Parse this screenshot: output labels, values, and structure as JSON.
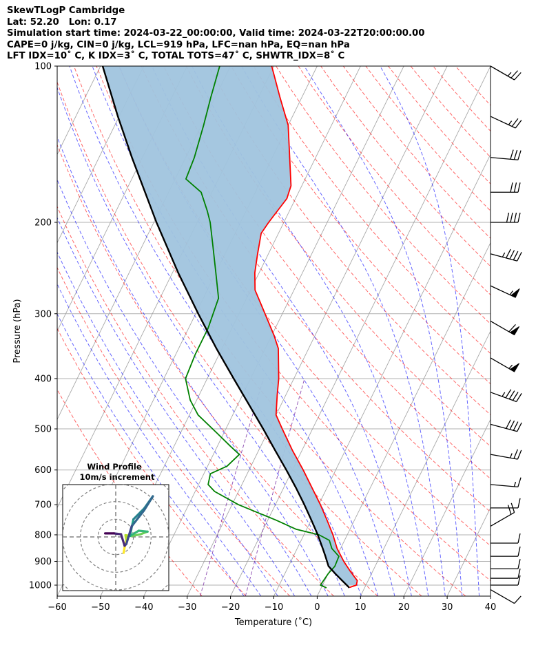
{
  "header": {
    "line1": "SkewTLogP Cambridge",
    "line2": "Lat: 52.20   Lon: 0.17",
    "line3": "Simulation start time: 2024-03-22_00:00:00, Valid time: 2024-03-22T20:00:00.00",
    "line4": "CAPE=0 j/kg, CIN=0 j/kg, LCL=919 hPa, LFC=nan hPa, EQ=nan hPa",
    "line5": "LFT IDX=10˚ C, K IDX=3˚ C, TOTAL TOTS=47˚ C, SHWTR_IDX=8˚ C"
  },
  "chart_data": {
    "type": "skew-t log-p",
    "xlabel": "Temperature (˚C)",
    "ylabel": "Pressure (hPa)",
    "xlim": [
      -60,
      40
    ],
    "ylim": [
      1050,
      100
    ],
    "xticks": [
      -60,
      -50,
      -40,
      -30,
      -20,
      -10,
      0,
      10,
      20,
      30,
      40
    ],
    "yticks": [
      100,
      200,
      300,
      400,
      500,
      600,
      700,
      800,
      900,
      1000
    ],
    "colors": {
      "temperature": "#ff0000",
      "dewpoint": "#008000",
      "parcel": "#000000",
      "cape_fill": "#a0c4de",
      "dry_adiabat": "#ff0000",
      "moist_adiabat": "#0000ff",
      "mixing_ratio": "#7b2fa5",
      "isotherm": "#999999",
      "grid": "#b0b0b0"
    },
    "temperature": [
      {
        "p": 1010,
        "t": 6.5
      },
      {
        "p": 1000,
        "t": 7.8
      },
      {
        "p": 980,
        "t": 7.5
      },
      {
        "p": 940,
        "t": 4.8
      },
      {
        "p": 900,
        "t": 2.2
      },
      {
        "p": 850,
        "t": -0.8
      },
      {
        "p": 800,
        "t": -3.3
      },
      {
        "p": 750,
        "t": -6.3
      },
      {
        "p": 700,
        "t": -9.6
      },
      {
        "p": 650,
        "t": -13.4
      },
      {
        "p": 600,
        "t": -17.5
      },
      {
        "p": 550,
        "t": -22.2
      },
      {
        "p": 500,
        "t": -27.0
      },
      {
        "p": 470,
        "t": -30.0
      },
      {
        "p": 430,
        "t": -32.0
      },
      {
        "p": 400,
        "t": -33.5
      },
      {
        "p": 350,
        "t": -37.0
      },
      {
        "p": 330,
        "t": -39.5
      },
      {
        "p": 300,
        "t": -44.0
      },
      {
        "p": 270,
        "t": -49.0
      },
      {
        "p": 250,
        "t": -51.0
      },
      {
        "p": 230,
        "t": -52.5
      },
      {
        "p": 210,
        "t": -54.0
      },
      {
        "p": 200,
        "t": -53.5
      },
      {
        "p": 180,
        "t": -52.0
      },
      {
        "p": 170,
        "t": -52.5
      },
      {
        "p": 150,
        "t": -56.0
      },
      {
        "p": 130,
        "t": -60.0
      },
      {
        "p": 115,
        "t": -65.0
      },
      {
        "p": 100,
        "t": -70.5
      }
    ],
    "dewpoint": [
      {
        "p": 1012,
        "t": 1.2
      },
      {
        "p": 1000,
        "t": -0.5
      },
      {
        "p": 980,
        "t": -0.3
      },
      {
        "p": 950,
        "t": 0.0
      },
      {
        "p": 920,
        "t": 0.7
      },
      {
        "p": 880,
        "t": 0.5
      },
      {
        "p": 850,
        "t": -2.0
      },
      {
        "p": 820,
        "t": -3.5
      },
      {
        "p": 800,
        "t": -6.5
      },
      {
        "p": 780,
        "t": -12.5
      },
      {
        "p": 750,
        "t": -18.0
      },
      {
        "p": 700,
        "t": -28.5
      },
      {
        "p": 660,
        "t": -35.5
      },
      {
        "p": 640,
        "t": -37.8
      },
      {
        "p": 610,
        "t": -38.5
      },
      {
        "p": 590,
        "t": -35.5
      },
      {
        "p": 560,
        "t": -34.0
      },
      {
        "p": 540,
        "t": -37.0
      },
      {
        "p": 510,
        "t": -41.5
      },
      {
        "p": 470,
        "t": -48.0
      },
      {
        "p": 440,
        "t": -51.5
      },
      {
        "p": 400,
        "t": -55.0
      },
      {
        "p": 360,
        "t": -55.5
      },
      {
        "p": 320,
        "t": -55.5
      },
      {
        "p": 280,
        "t": -56.5
      },
      {
        "p": 250,
        "t": -60.0
      },
      {
        "p": 220,
        "t": -64.0
      },
      {
        "p": 200,
        "t": -67.0
      },
      {
        "p": 190,
        "t": -69.0
      },
      {
        "p": 175,
        "t": -72.5
      },
      {
        "p": 165,
        "t": -77.5
      },
      {
        "p": 150,
        "t": -78.0
      },
      {
        "p": 130,
        "t": -79.5
      },
      {
        "p": 115,
        "t": -81.0
      },
      {
        "p": 100,
        "t": -82.5
      }
    ],
    "parcel": [
      {
        "p": 1012,
        "t": 6.5
      },
      {
        "p": 980,
        "t": 4.0
      },
      {
        "p": 950,
        "t": 1.6
      },
      {
        "p": 919,
        "t": -0.8
      },
      {
        "p": 880,
        "t": -2.6
      },
      {
        "p": 850,
        "t": -4.1
      },
      {
        "p": 800,
        "t": -6.8
      },
      {
        "p": 750,
        "t": -9.9
      },
      {
        "p": 700,
        "t": -13.3
      },
      {
        "p": 650,
        "t": -17.1
      },
      {
        "p": 600,
        "t": -21.4
      },
      {
        "p": 550,
        "t": -26.2
      },
      {
        "p": 500,
        "t": -31.4
      },
      {
        "p": 450,
        "t": -37.3
      },
      {
        "p": 400,
        "t": -43.9
      },
      {
        "p": 350,
        "t": -51.3
      },
      {
        "p": 300,
        "t": -59.4
      },
      {
        "p": 250,
        "t": -68.7
      },
      {
        "p": 200,
        "t": -79.4
      },
      {
        "p": 150,
        "t": -92.4
      },
      {
        "p": 125,
        "t": -100.3
      },
      {
        "p": 100,
        "t": -109.5
      }
    ],
    "wind_barbs": [
      {
        "p": 100,
        "speed_kt": 25,
        "dir": 300
      },
      {
        "p": 125,
        "speed_kt": 25,
        "dir": 295
      },
      {
        "p": 150,
        "speed_kt": 30,
        "dir": 275
      },
      {
        "p": 175,
        "speed_kt": 30,
        "dir": 270
      },
      {
        "p": 200,
        "speed_kt": 40,
        "dir": 270
      },
      {
        "p": 230,
        "speed_kt": 45,
        "dir": 285
      },
      {
        "p": 265,
        "speed_kt": 55,
        "dir": 295
      },
      {
        "p": 310,
        "speed_kt": 60,
        "dir": 300
      },
      {
        "p": 365,
        "speed_kt": 55,
        "dir": 300
      },
      {
        "p": 425,
        "speed_kt": 45,
        "dir": 290
      },
      {
        "p": 490,
        "speed_kt": 40,
        "dir": 285
      },
      {
        "p": 560,
        "speed_kt": 25,
        "dir": 280
      },
      {
        "p": 640,
        "speed_kt": 15,
        "dir": 275
      },
      {
        "p": 710,
        "speed_kt": 10,
        "dir": 270
      },
      {
        "p": 770,
        "speed_kt": 20,
        "dir": 240
      },
      {
        "p": 830,
        "speed_kt": 10,
        "dir": 270
      },
      {
        "p": 880,
        "speed_kt": 10,
        "dir": 270
      },
      {
        "p": 930,
        "speed_kt": 10,
        "dir": 270
      },
      {
        "p": 970,
        "speed_kt": 10,
        "dir": 270
      },
      {
        "p": 1000,
        "speed_kt": 10,
        "dir": 270
      },
      {
        "p": 1020,
        "speed_kt": 10,
        "dir": 300
      }
    ],
    "hodograph": {
      "title": "Wind Profile",
      "subtitle": "10m/s increment",
      "ring_spacing_ms": 10,
      "extent_ms": 30,
      "points": [
        {
          "u": 4.5,
          "v": -9.0
        },
        {
          "u": 5.0,
          "v": -6.0
        },
        {
          "u": 6.0,
          "v": -2.0
        },
        {
          "u": 5.5,
          "v": 1.0
        },
        {
          "u": 9.0,
          "v": 0.5
        },
        {
          "u": 14.0,
          "v": 1.5
        },
        {
          "u": 18.0,
          "v": 3.0
        },
        {
          "u": 13.0,
          "v": 3.5
        },
        {
          "u": 8.0,
          "v": 0.5
        },
        {
          "u": 10.0,
          "v": 10.0
        },
        {
          "u": 16.0,
          "v": 16.0
        },
        {
          "u": 21.0,
          "v": 23.0
        },
        {
          "u": 16.0,
          "v": 15.0
        },
        {
          "u": 9.0,
          "v": 6.0
        },
        {
          "u": 6.0,
          "v": -4.0
        },
        {
          "u": 5.0,
          "v": -5.0
        },
        {
          "u": 3.0,
          "v": 1.5
        },
        {
          "u": -1.0,
          "v": 2.0
        },
        {
          "u": -6.0,
          "v": 2.0
        }
      ]
    }
  }
}
